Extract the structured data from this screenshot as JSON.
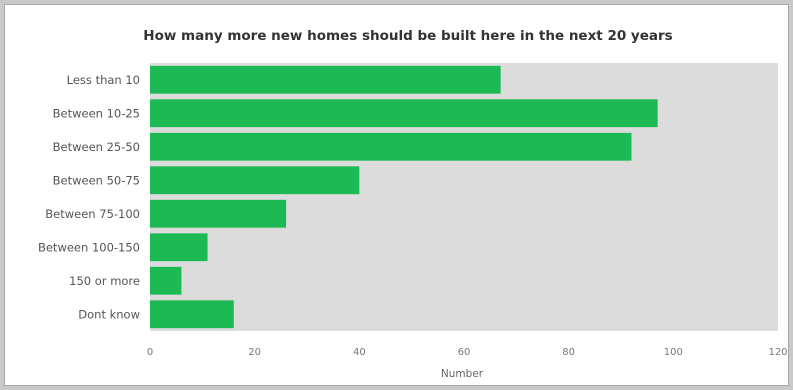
{
  "chart_data": {
    "type": "bar",
    "orientation": "horizontal",
    "title": "How many more new homes should be built here in the next 20 years",
    "xlabel": "Number",
    "ylabel": "",
    "categories": [
      "Less than 10",
      "Between  10-25",
      "Between  25-50",
      "Between 50-75",
      "Between 75-100",
      "Between 100-150",
      "150 or more",
      "Dont know"
    ],
    "values": [
      67,
      97,
      92,
      40,
      26,
      11,
      6,
      16
    ],
    "xlim": [
      0,
      120
    ],
    "xticks": [
      0,
      20,
      40,
      60,
      80,
      100,
      120
    ],
    "grid": false,
    "colors": {
      "bar": "#1db954",
      "plot_area": "#dcdcdc",
      "card": "#ffffff"
    }
  }
}
